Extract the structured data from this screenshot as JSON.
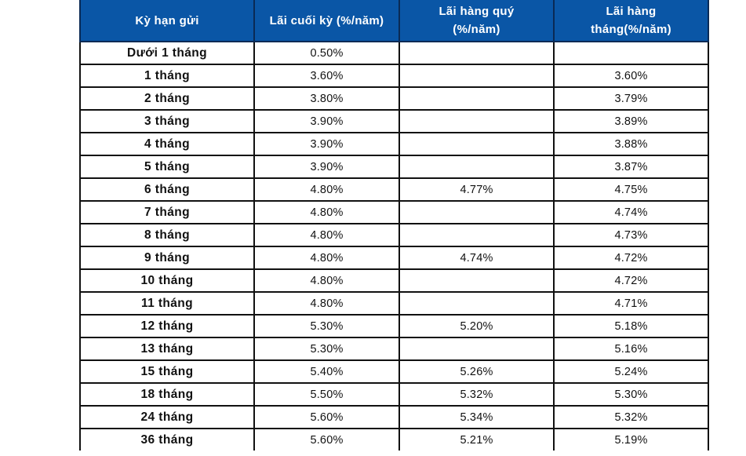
{
  "table": {
    "headers": [
      "Kỳ hạn gửi",
      "Lãi cuối kỳ (%/năm)",
      "Lãi hàng quý (%/năm)",
      "Lãi hàng tháng(%/năm)"
    ],
    "header_color": "#0a56a6",
    "rows": [
      {
        "term": "Dưới 1 tháng",
        "end_of_term": "0.50%",
        "quarterly": "",
        "monthly": ""
      },
      {
        "term": "1 tháng",
        "end_of_term": "3.60%",
        "quarterly": "",
        "monthly": "3.60%"
      },
      {
        "term": "2 tháng",
        "end_of_term": "3.80%",
        "quarterly": "",
        "monthly": "3.79%"
      },
      {
        "term": "3 tháng",
        "end_of_term": "3.90%",
        "quarterly": "",
        "monthly": "3.89%"
      },
      {
        "term": "4 tháng",
        "end_of_term": "3.90%",
        "quarterly": "",
        "monthly": "3.88%"
      },
      {
        "term": "5 tháng",
        "end_of_term": "3.90%",
        "quarterly": "",
        "monthly": "3.87%"
      },
      {
        "term": "6 tháng",
        "end_of_term": "4.80%",
        "quarterly": "4.77%",
        "monthly": "4.75%"
      },
      {
        "term": "7 tháng",
        "end_of_term": "4.80%",
        "quarterly": "",
        "monthly": "4.74%"
      },
      {
        "term": "8 tháng",
        "end_of_term": "4.80%",
        "quarterly": "",
        "monthly": "4.73%"
      },
      {
        "term": "9 tháng",
        "end_of_term": "4.80%",
        "quarterly": "4.74%",
        "monthly": "4.72%"
      },
      {
        "term": "10 tháng",
        "end_of_term": "4.80%",
        "quarterly": "",
        "monthly": "4.72%"
      },
      {
        "term": "11 tháng",
        "end_of_term": "4.80%",
        "quarterly": "",
        "monthly": "4.71%"
      },
      {
        "term": "12 tháng",
        "end_of_term": "5.30%",
        "quarterly": "5.20%",
        "monthly": "5.18%"
      },
      {
        "term": "13 tháng",
        "end_of_term": "5.30%",
        "quarterly": "",
        "monthly": "5.16%"
      },
      {
        "term": "15 tháng",
        "end_of_term": "5.40%",
        "quarterly": "5.26%",
        "monthly": "5.24%"
      },
      {
        "term": "18 tháng",
        "end_of_term": "5.50%",
        "quarterly": "5.32%",
        "monthly": "5.30%"
      },
      {
        "term": "24 tháng",
        "end_of_term": "5.60%",
        "quarterly": "5.34%",
        "monthly": "5.32%"
      },
      {
        "term": "36 tháng",
        "end_of_term": "5.60%",
        "quarterly": "5.21%",
        "monthly": "5.19%"
      }
    ]
  }
}
